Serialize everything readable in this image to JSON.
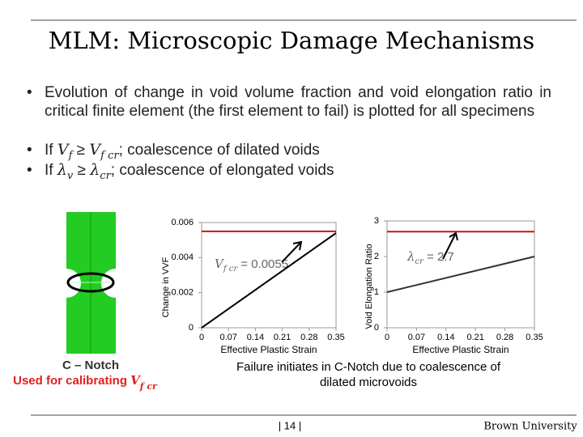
{
  "title": "MLM: Microscopic Damage Mechanisms",
  "bullets": [
    [
      "Evolution of change in void volume fraction and void elongation ratio in critical finite element (the first element to fail) is plotted for all specimens"
    ],
    [
      "If ",
      "V",
      "f",
      " ≥ ",
      "V",
      "f cr",
      "; coalescence of dilated voids"
    ],
    [
      "If ",
      "λ",
      "v",
      " ≥ ",
      "λ",
      "cr",
      "; coalescence of elongated voids"
    ]
  ],
  "specimen": {
    "label": "C – Notch",
    "caption": [
      "Used for calibrating ",
      "V",
      "f cr"
    ]
  },
  "caption_lines": [
    "Failure initiates in C-Notch due to coalescence of",
    "dilated microvoids"
  ],
  "footer": {
    "page": "| 14 |",
    "org": "Brown University"
  },
  "chart_data": [
    {
      "type": "line",
      "ylabel": "Change in VVF",
      "xlabel": "Effective Plastic Strain",
      "x": [
        0,
        0.35
      ],
      "xlim": [
        0,
        0.35
      ],
      "xticks": [
        0,
        0.07,
        0.14,
        0.21,
        0.28,
        0.35
      ],
      "ylim": [
        0,
        0.006
      ],
      "yticks": [
        0,
        0.002,
        0.004,
        0.006
      ],
      "series": [
        {
          "color": "#000000",
          "values": [
            0,
            0.0054
          ]
        },
        {
          "color": "#d01010",
          "values": [
            0.0055,
            0.0055
          ]
        }
      ],
      "annotation": [
        "V",
        "f cr",
        " = 0.0055"
      ]
    },
    {
      "type": "line",
      "ylabel": "Void Elongation Ratio",
      "xlabel": "Effective Plastic Strain",
      "x": [
        0,
        0.35
      ],
      "xlim": [
        0,
        0.35
      ],
      "xticks": [
        0,
        0.07,
        0.14,
        0.21,
        0.28,
        0.35
      ],
      "ylim": [
        0,
        3
      ],
      "yticks": [
        0,
        1,
        2,
        3
      ],
      "series": [
        {
          "color": "#333333",
          "values": [
            1,
            2
          ]
        },
        {
          "color": "#d01010",
          "values": [
            2.7,
            2.7
          ]
        }
      ],
      "annotation": [
        "λ",
        "cr",
        " = 2.7"
      ]
    }
  ]
}
